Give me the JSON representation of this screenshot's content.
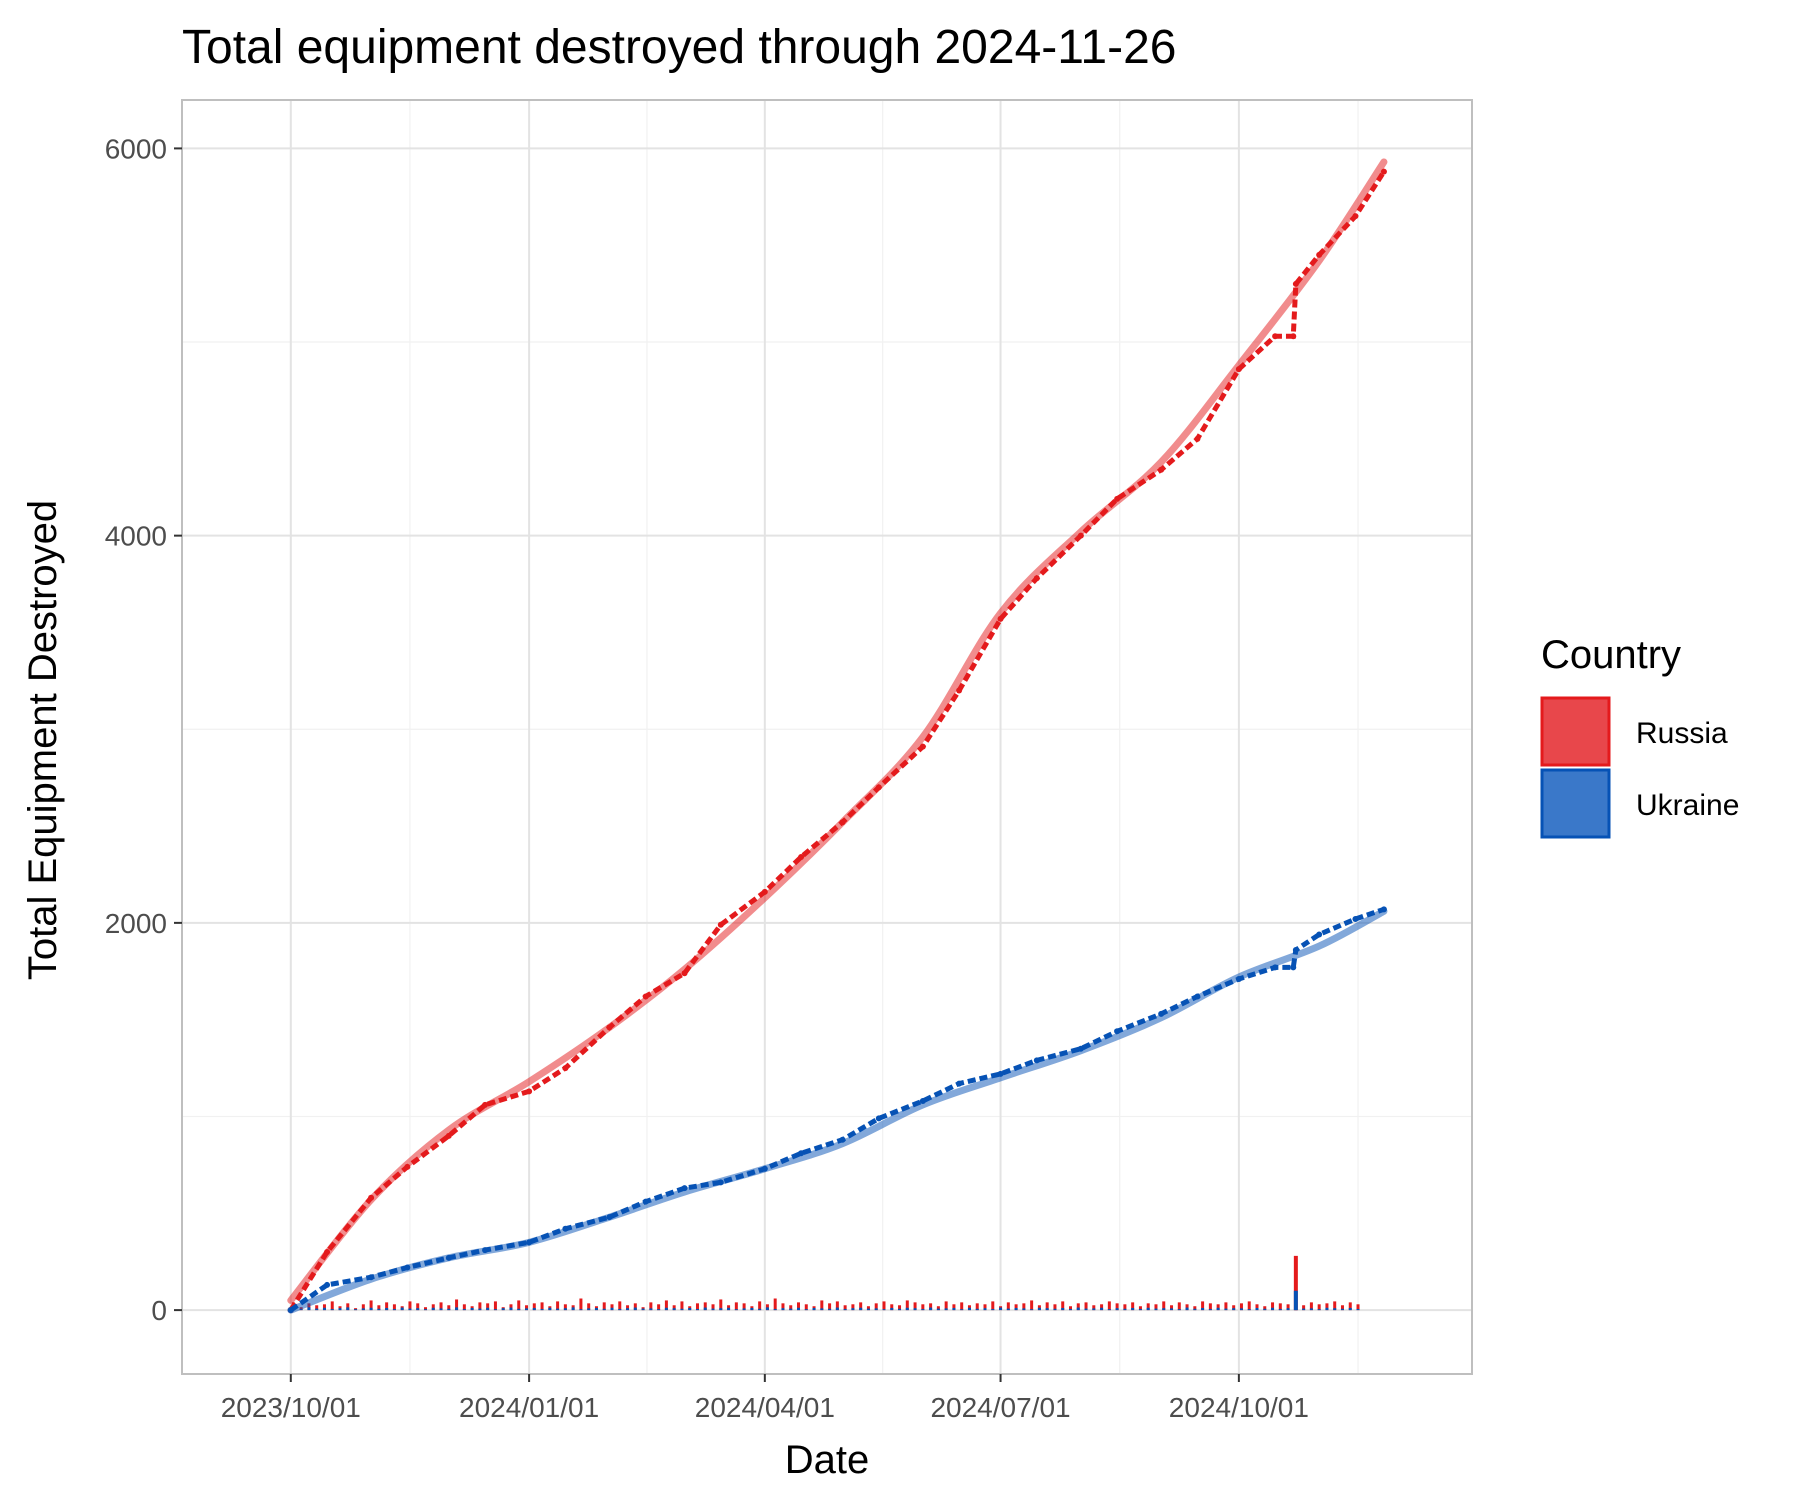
{
  "chart_data": {
    "type": "line",
    "title": "Total equipment destroyed through 2024-11-26",
    "xlabel": "Date",
    "ylabel": "Total Equipment Destroyed",
    "x_ticks": [
      "2023/10/01",
      "2024/01/01",
      "2024/04/01",
      "2024/07/01",
      "2024/10/01"
    ],
    "y_ticks": [
      0,
      2000,
      4000,
      6000
    ],
    "xlim": [
      "2023-08-20",
      "2024-12-30"
    ],
    "ylim": [
      -330,
      6250
    ],
    "grid": true,
    "legend": {
      "title": "Country",
      "position": "right"
    },
    "colors": {
      "Russia": "#e41a1c",
      "Ukraine": "#0652b5",
      "Russia_fill": "#e8474b",
      "Ukraine_fill": "#3a78c9"
    },
    "cumulative_points": {
      "x": [
        "2023-10-01",
        "2023-10-15",
        "2023-11-01",
        "2023-11-15",
        "2023-12-01",
        "2023-12-15",
        "2024-01-01",
        "2024-01-15",
        "2024-02-01",
        "2024-02-15",
        "2024-03-01",
        "2024-03-15",
        "2024-04-01",
        "2024-04-15",
        "2024-05-01",
        "2024-05-15",
        "2024-06-01",
        "2024-06-15",
        "2024-07-01",
        "2024-07-15",
        "2024-08-01",
        "2024-08-15",
        "2024-09-01",
        "2024-09-15",
        "2024-10-01",
        "2024-10-15",
        "2024-10-22",
        "2024-10-23",
        "2024-11-01",
        "2024-11-15",
        "2024-11-26"
      ],
      "series": [
        {
          "name": "Russia",
          "values": [
            0,
            300,
            580,
            740,
            900,
            1060,
            1130,
            1250,
            1460,
            1620,
            1740,
            1990,
            2160,
            2340,
            2520,
            2700,
            2910,
            3200,
            3570,
            3780,
            4000,
            4190,
            4340,
            4500,
            4860,
            5030,
            5030,
            5300,
            5450,
            5650,
            5880
          ]
        },
        {
          "name": "Ukraine",
          "values": [
            0,
            130,
            170,
            220,
            270,
            310,
            350,
            420,
            480,
            560,
            630,
            660,
            730,
            810,
            880,
            990,
            1080,
            1170,
            1220,
            1290,
            1350,
            1440,
            1530,
            1620,
            1710,
            1770,
            1770,
            1860,
            1940,
            2020,
            2070
          ]
        }
      ]
    },
    "trend_lines": {
      "x": [
        "2023-10-01",
        "2023-11-01",
        "2023-12-01",
        "2024-01-01",
        "2024-02-01",
        "2024-03-01",
        "2024-04-01",
        "2024-05-01",
        "2024-06-01",
        "2024-07-01",
        "2024-08-01",
        "2024-09-01",
        "2024-10-01",
        "2024-11-01",
        "2024-11-26"
      ],
      "series": [
        {
          "name": "Russia",
          "values": [
            50,
            570,
            930,
            1180,
            1460,
            1760,
            2130,
            2520,
            2960,
            3600,
            4020,
            4380,
            4880,
            5420,
            5930
          ]
        },
        {
          "name": "Ukraine",
          "values": [
            0,
            160,
            270,
            350,
            480,
            610,
            730,
            860,
            1060,
            1200,
            1340,
            1510,
            1720,
            1880,
            2060
          ]
        }
      ]
    },
    "daily_bars": {
      "start": "2023-10-02",
      "end": "2024-11-26",
      "step_days": 3,
      "special": [
        {
          "x": "2024-10-23",
          "Russia": 280,
          "Ukraine": 100
        }
      ],
      "series": [
        {
          "name": "Russia",
          "values": [
            40,
            15,
            35,
            25,
            30,
            45,
            20,
            35,
            10,
            30,
            50,
            25,
            40,
            30,
            20,
            45,
            35,
            15,
            30,
            40,
            25,
            55,
            30,
            20,
            40,
            35,
            45,
            15,
            30,
            50,
            25,
            35,
            40,
            20,
            45,
            30,
            25,
            60,
            35,
            20,
            40,
            30,
            45,
            25,
            35,
            15,
            40,
            30,
            50,
            25,
            45,
            20,
            35,
            40,
            30,
            55,
            25,
            40,
            35,
            20,
            45,
            30,
            60,
            35,
            25,
            40,
            30,
            20,
            50,
            35,
            45,
            25,
            30,
            40,
            20,
            35,
            45,
            30,
            25,
            50,
            40,
            30,
            35,
            20,
            45,
            30,
            40,
            25,
            35,
            30,
            45,
            20,
            40,
            30,
            35,
            50,
            25,
            40,
            30,
            45,
            20,
            35,
            40,
            25,
            30,
            45,
            35,
            30,
            40,
            20,
            35,
            30,
            45,
            25,
            40,
            30,
            20,
            45,
            35,
            30,
            40,
            25,
            35,
            45,
            30,
            20,
            40,
            35,
            30,
            45,
            25,
            40,
            30,
            35,
            45,
            25,
            40,
            30
          ]
        },
        {
          "name": "Ukraine",
          "values": [
            10,
            5,
            15,
            8,
            12,
            6,
            10,
            14,
            5,
            9,
            12,
            7,
            11,
            6,
            13,
            8,
            10,
            5,
            12,
            9,
            7,
            14,
            6,
            11,
            8,
            12,
            5,
            10,
            13,
            7,
            9,
            11,
            6,
            12,
            8,
            10,
            14,
            5,
            9,
            11,
            7,
            12,
            6,
            10,
            13,
            8,
            9,
            5,
            12,
            10,
            7,
            11,
            6,
            13,
            8,
            10,
            12,
            5,
            9,
            11,
            7,
            14,
            6,
            10,
            8,
            12,
            5,
            11,
            9,
            7,
            13,
            6,
            10,
            12,
            8,
            9,
            5,
            11,
            7,
            12,
            10,
            6,
            13,
            8,
            9,
            11,
            5,
            12,
            7,
            10,
            6,
            13,
            8,
            11,
            9,
            5,
            12,
            10,
            7,
            11,
            6,
            13,
            8,
            9,
            12,
            5,
            10,
            7,
            11,
            6,
            12,
            8,
            10,
            9,
            5,
            13,
            7,
            11,
            6,
            12,
            8,
            10,
            9,
            5,
            11,
            7,
            12,
            6,
            10,
            13,
            8,
            9,
            5,
            12,
            10,
            7,
            11,
            6
          ]
        }
      ]
    }
  }
}
